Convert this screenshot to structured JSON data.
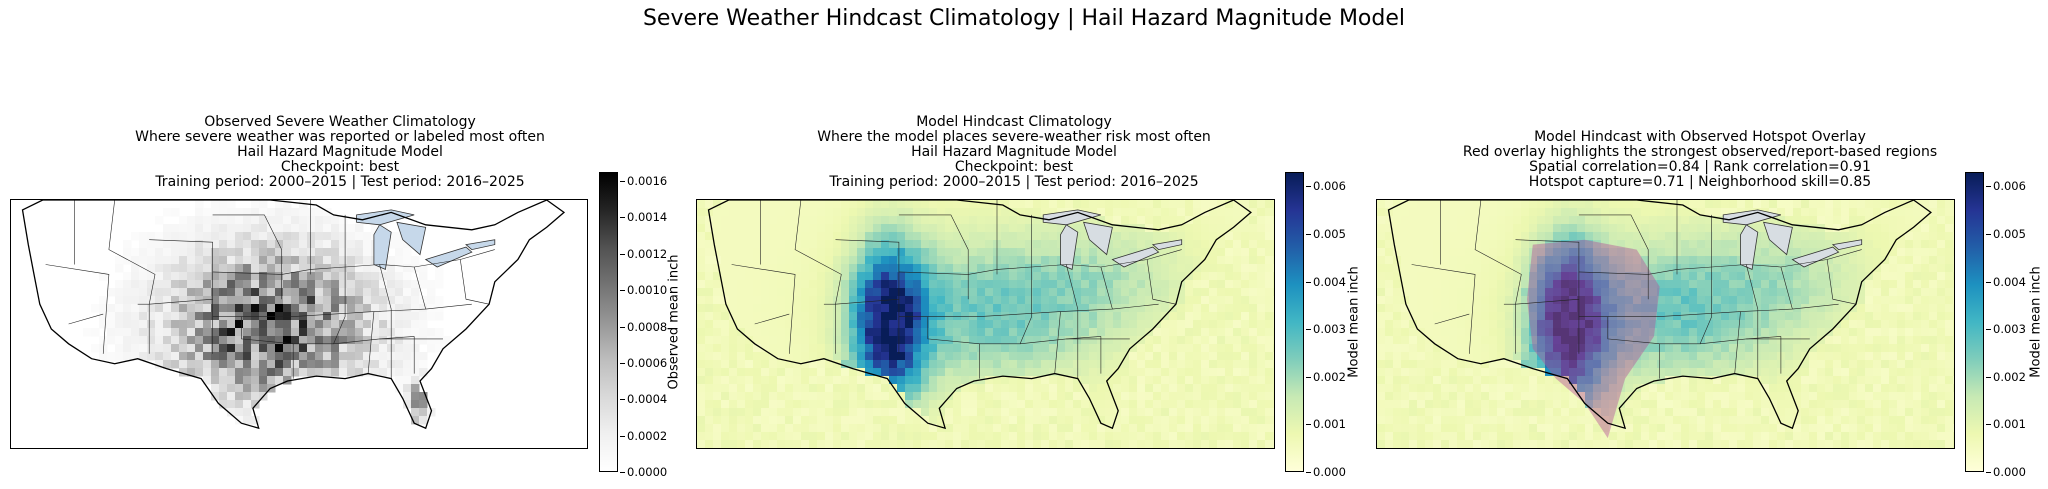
{
  "figure": {
    "title": "Severe Weather Hindcast Climatology | Hail Hazard Magnitude Model"
  },
  "panels": [
    {
      "id": "observed",
      "title_lines": [
        "Observed Severe Weather Climatology",
        "Where severe weather was reported or labeled most often",
        "Hail Hazard Magnitude Model",
        "Checkpoint: best",
        "Training period: 2000–2015 | Test period: 2016–2025"
      ],
      "colorbar": {
        "label": "Observed mean inch",
        "colormap": "greys",
        "min": 0.0,
        "max": 0.00165,
        "ticks": [
          "0.0000",
          "0.0002",
          "0.0004",
          "0.0006",
          "0.0008",
          "0.0010",
          "0.0012",
          "0.0014",
          "0.0016"
        ],
        "tick_values": [
          0.0,
          0.0002,
          0.0004,
          0.0006,
          0.0008,
          0.001,
          0.0012,
          0.0014,
          0.0016
        ],
        "colors": [
          "#ffffff",
          "#f0f0f0",
          "#d9d9d9",
          "#bdbdbd",
          "#969696",
          "#737373",
          "#525252",
          "#252525",
          "#000000"
        ]
      }
    },
    {
      "id": "model",
      "title_lines": [
        "Model Hindcast Climatology",
        "Where the model places severe-weather risk most often",
        "Hail Hazard Magnitude Model",
        "Checkpoint: best",
        "Training period: 2000–2015 | Test period: 2016–2025"
      ],
      "colorbar": {
        "label": "Model mean inch",
        "colormap": "YlGnBu",
        "min": 0.0,
        "max": 0.0063,
        "ticks": [
          "0.000",
          "0.001",
          "0.002",
          "0.003",
          "0.004",
          "0.005",
          "0.006"
        ],
        "tick_values": [
          0.0,
          0.001,
          0.002,
          0.003,
          0.004,
          0.005,
          0.006
        ],
        "colors": [
          "#ffffd9",
          "#edf8b1",
          "#c7e9b4",
          "#7fcdbb",
          "#41b6c4",
          "#1d91c0",
          "#225ea8",
          "#253494",
          "#081d58"
        ]
      }
    },
    {
      "id": "overlay",
      "title_lines": [
        "Model Hindcast with Observed Hotspot Overlay",
        "Red overlay highlights the strongest observed/report-based regions",
        "Spatial correlation=0.84 | Rank correlation=0.91",
        "Hotspot capture=0.71 | Neighborhood skill=0.85"
      ],
      "colorbar": {
        "label": "Model mean inch",
        "colormap": "YlGnBu",
        "min": 0.0,
        "max": 0.0063,
        "ticks": [
          "0.000",
          "0.001",
          "0.002",
          "0.003",
          "0.004",
          "0.005",
          "0.006"
        ],
        "tick_values": [
          0.0,
          0.001,
          0.002,
          0.003,
          0.004,
          0.005,
          0.006
        ],
        "colors": [
          "#ffffd9",
          "#edf8b1",
          "#c7e9b4",
          "#7fcdbb",
          "#41b6c4",
          "#1d91c0",
          "#225ea8",
          "#253494",
          "#081d58"
        ]
      }
    }
  ],
  "map_colors": {
    "lakes": "#c6d8ea",
    "coast": "#000000",
    "borders": "#222222",
    "hotspot_overlay": "#b5549a"
  }
}
